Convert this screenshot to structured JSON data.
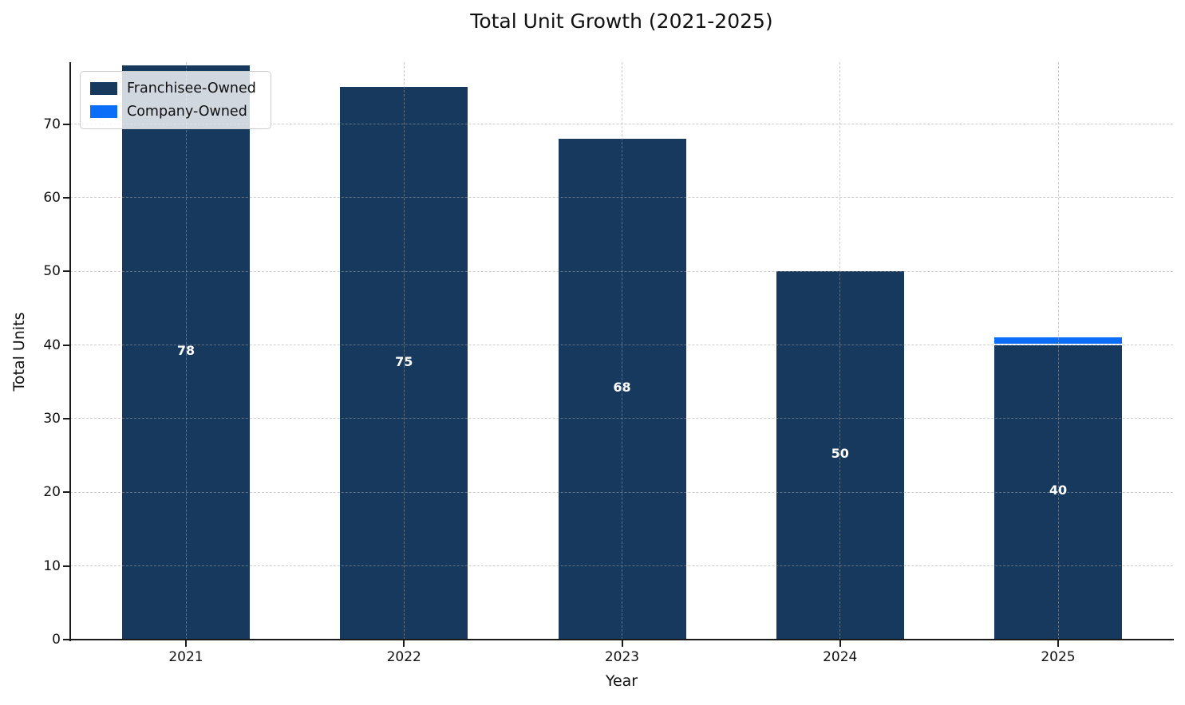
{
  "chart_data": {
    "type": "bar",
    "stacked": true,
    "title": "Total Unit Growth (2021-2025)",
    "xlabel": "Year",
    "ylabel": "Total Units",
    "categories": [
      "2021",
      "2022",
      "2023",
      "2024",
      "2025"
    ],
    "series": [
      {
        "name": "Franchisee-Owned",
        "color": "#17395e",
        "values": [
          78,
          75,
          68,
          50,
          40
        ]
      },
      {
        "name": "Company-Owned",
        "color": "#0b6ef8",
        "values": [
          0,
          0,
          0,
          0,
          1
        ]
      }
    ],
    "bar_labels": [
      "78",
      "75",
      "68",
      "50",
      "40"
    ],
    "yticks": [
      0,
      10,
      20,
      30,
      40,
      50,
      60,
      70
    ],
    "ylim": [
      0,
      78.4
    ],
    "grid": true,
    "legend_position": "upper left"
  },
  "colors": {
    "text": "#111111",
    "spine": "#1a1a1a",
    "grid": "#a0a0a0",
    "bar_label": "#ffffff",
    "legend_border": "#cccccc"
  }
}
